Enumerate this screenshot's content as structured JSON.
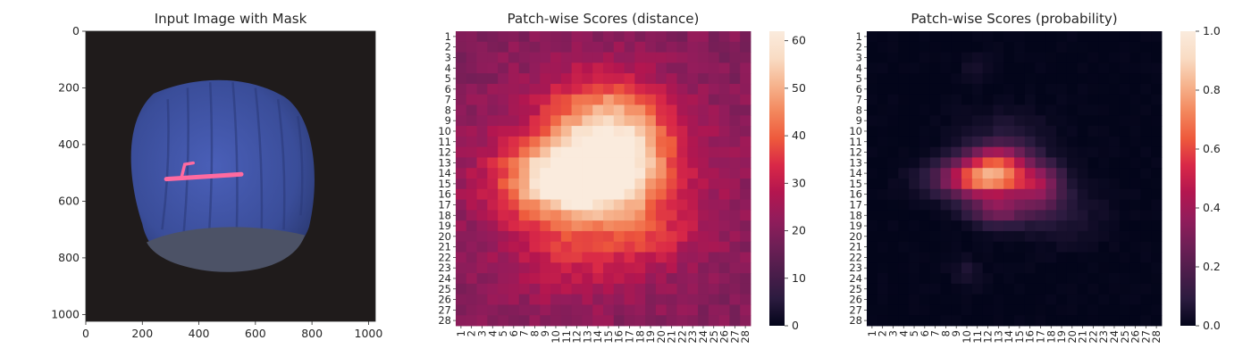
{
  "colors": {
    "background": "#1f1b1b",
    "hazelnut_body": "#3a4d99",
    "hazelnut_base": "#4c5266",
    "mask_stroke": "#ff6aa0",
    "rocket_colormap": [
      "#03051a",
      "#2b1b3f",
      "#4c1d4b",
      "#6f1f56",
      "#931c5b",
      "#b4164f",
      "#d92847",
      "#ee5a3c",
      "#f3875d",
      "#f6b48e",
      "#f9dcc4",
      "#faebdd"
    ]
  },
  "chart_data": [
    {
      "type": "image",
      "title": "Input Image with Mask",
      "xlim": [
        0,
        1024
      ],
      "ylim": [
        1024,
        0
      ],
      "xticks": [
        "0",
        "200",
        "400",
        "600",
        "800",
        "1000"
      ],
      "yticks": [
        "0",
        "200",
        "400",
        "600",
        "800",
        "1000"
      ],
      "xtick_values": [
        0,
        200,
        400,
        600,
        800,
        1000
      ],
      "ytick_values": [
        0,
        200,
        400,
        600,
        800,
        1000
      ],
      "object": "hazelnut",
      "mask": "scratch"
    },
    {
      "type": "heatmap",
      "title": "Patch-wise Scores (distance)",
      "grid": 28,
      "ticks": [
        "1",
        "2",
        "3",
        "4",
        "5",
        "6",
        "7",
        "8",
        "9",
        "10",
        "11",
        "12",
        "13",
        "14",
        "15",
        "16",
        "17",
        "18",
        "19",
        "20",
        "21",
        "22",
        "23",
        "24",
        "25",
        "26",
        "27",
        "28"
      ],
      "vmin": 0,
      "vmax": 62,
      "colorbar_ticks": [
        "0",
        "10",
        "20",
        "30",
        "40",
        "50",
        "60"
      ],
      "colorbar_tick_values": [
        0,
        10,
        20,
        30,
        40,
        50,
        60
      ],
      "background": 20,
      "blobs": [
        {
          "cx": 14,
          "cy": 8,
          "sx": 4,
          "sy": 3,
          "a": 14
        },
        {
          "cx": 16,
          "cy": 11,
          "sx": 3.5,
          "sy": 3,
          "a": 18
        },
        {
          "cx": 12,
          "cy": 14.5,
          "sx": 4.5,
          "sy": 2.5,
          "a": 42
        },
        {
          "cx": 14.5,
          "cy": 15,
          "sx": 7,
          "sy": 5.5,
          "a": 14
        },
        {
          "cx": 11,
          "cy": 22,
          "sx": 4,
          "sy": 3,
          "a": 8
        },
        {
          "cx": 19,
          "cy": 20,
          "sx": 3,
          "sy": 2,
          "a": 8
        }
      ],
      "noise": 3
    },
    {
      "type": "heatmap",
      "title": "Patch-wise Scores (probability)",
      "grid": 28,
      "ticks": [
        "1",
        "2",
        "3",
        "4",
        "5",
        "6",
        "7",
        "8",
        "9",
        "10",
        "11",
        "12",
        "13",
        "14",
        "15",
        "16",
        "17",
        "18",
        "19",
        "20",
        "21",
        "22",
        "23",
        "24",
        "25",
        "26",
        "27",
        "28"
      ],
      "vmin": 0,
      "vmax": 1,
      "colorbar_ticks": [
        "0.0",
        "0.2",
        "0.4",
        "0.6",
        "0.8",
        "1.0"
      ],
      "colorbar_tick_values": [
        0,
        0.2,
        0.4,
        0.6,
        0.8,
        1.0
      ],
      "background": 0,
      "blobs": [
        {
          "cx": 12,
          "cy": 14.5,
          "sx": 3,
          "sy": 1.2,
          "a": 0.78
        },
        {
          "cx": 13,
          "cy": 12.5,
          "sx": 2,
          "sy": 1,
          "a": 0.35
        },
        {
          "cx": 13,
          "cy": 17.5,
          "sx": 2,
          "sy": 1,
          "a": 0.3
        },
        {
          "cx": 17,
          "cy": 15.5,
          "sx": 1.5,
          "sy": 1.5,
          "a": 0.25
        },
        {
          "cx": 14,
          "cy": 10,
          "sx": 3,
          "sy": 1.5,
          "a": 0.06
        },
        {
          "cx": 19,
          "cy": 18,
          "sx": 3,
          "sy": 2,
          "a": 0.06
        },
        {
          "cx": 11,
          "cy": 4,
          "sx": 1,
          "sy": 1,
          "a": 0.05
        },
        {
          "cx": 10,
          "cy": 23.5,
          "sx": 1,
          "sy": 1,
          "a": 0.06
        }
      ],
      "noise": 0.01
    }
  ]
}
